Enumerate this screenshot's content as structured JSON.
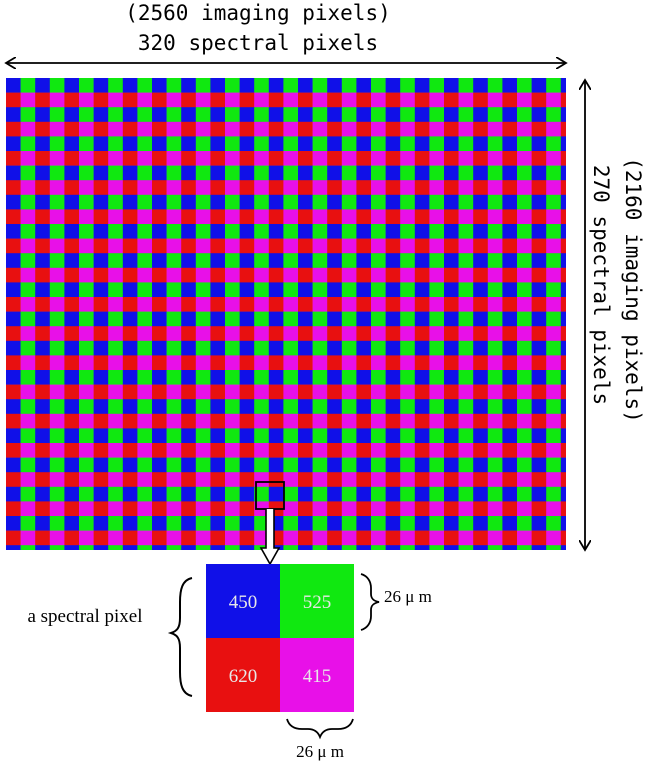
{
  "top_label": {
    "line1": "(2560 imaging pixels)",
    "line2": "320 spectral pixels"
  },
  "right_label": {
    "line1": "(2160 imaging pixels)",
    "line2": "270 spectral pixels"
  },
  "mosaic": {
    "pattern": [
      [
        "blue",
        "green"
      ],
      [
        "red",
        "magenta"
      ]
    ],
    "colors": {
      "blue": "#1010e8",
      "green": "#10e810",
      "red": "#e81010",
      "magenta": "#e810e8"
    }
  },
  "zoom": {
    "cells": [
      {
        "value": "450",
        "color": "#1010e8"
      },
      {
        "value": "525",
        "color": "#10e810"
      },
      {
        "value": "620",
        "color": "#e81010"
      },
      {
        "value": "415",
        "color": "#e810e8"
      }
    ],
    "label": "a spectral pixel",
    "size_right": "26 μ m",
    "size_bottom": "26 μ m"
  }
}
